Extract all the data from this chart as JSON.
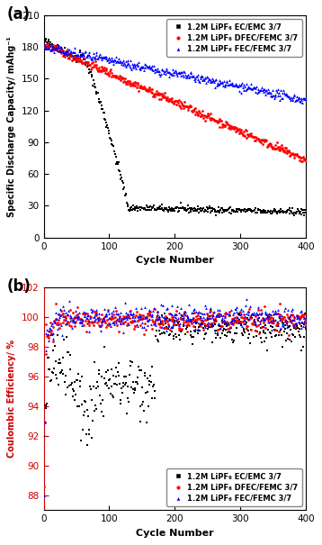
{
  "fig_width": 3.58,
  "fig_height": 6.05,
  "dpi": 100,
  "background_color": "#ffffff",
  "subplot_a": {
    "label": "(a)",
    "ylabel": "Specific Discharge Capacity/ mAhg⁻¹",
    "xlabel": "Cycle Number",
    "xlim": [
      0,
      400
    ],
    "ylim": [
      0,
      210
    ],
    "yticks": [
      0,
      30,
      60,
      90,
      120,
      150,
      180,
      210
    ],
    "xticks": [
      0,
      100,
      200,
      300,
      400
    ],
    "series": [
      {
        "label": "1.2M LiPF₆ EC/EMC 3/7",
        "color": "#000000",
        "marker": "s",
        "markersize": 2.0
      },
      {
        "label": "1.2M LiPF₆ DFEC/FEMC 3/7",
        "color": "#ff0000",
        "marker": "o",
        "markersize": 2.0
      },
      {
        "label": "1.2M LiPF₆ FEC/FEMC 3/7",
        "color": "#0000ff",
        "marker": "^",
        "markersize": 2.0
      }
    ]
  },
  "subplot_b": {
    "label": "(b)",
    "ylabel": "Coulombic Efficiency/ %",
    "ylabel_color": "#cc0000",
    "xlabel": "Cycle Number",
    "xlim": [
      0,
      400
    ],
    "ylim": [
      87,
      102
    ],
    "yticks": [
      88,
      90,
      92,
      94,
      96,
      98,
      100,
      102
    ],
    "xticks": [
      0,
      100,
      200,
      300,
      400
    ],
    "series": [
      {
        "label": "1.2M LiPF₆ EC/EMC 3/7",
        "color": "#000000",
        "marker": "s",
        "markersize": 2.0
      },
      {
        "label": "1.2M LiPF₆ DFEC/FEMC 3/7",
        "color": "#ff0000",
        "marker": "o",
        "markersize": 2.0
      },
      {
        "label": "1.2M LiPF₆ FEC/FEMC 3/7",
        "color": "#0000ff",
        "marker": "^",
        "markersize": 2.0
      }
    ]
  }
}
